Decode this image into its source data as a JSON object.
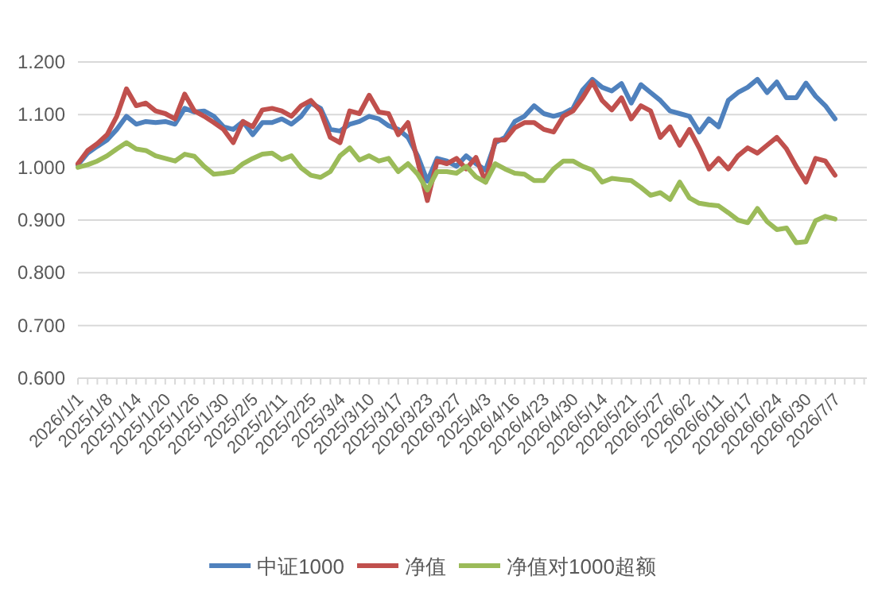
{
  "chart_data": {
    "type": "line",
    "categories": [
      "2026/1/1",
      null,
      null,
      "2025/1/8",
      null,
      null,
      "2025/1/14",
      null,
      null,
      "2025/1/20",
      null,
      null,
      "2025/1/26",
      null,
      null,
      "2025/1/30",
      null,
      null,
      "2025/2/5",
      null,
      null,
      "2025/2/11",
      null,
      null,
      "2025/2/25",
      null,
      null,
      "2025/3/4",
      null,
      null,
      "2025/3/10",
      null,
      null,
      "2025/3/17",
      null,
      null,
      "2026/3/23",
      null,
      null,
      "2026/3/27",
      null,
      null,
      "2025/4/3",
      null,
      null,
      "2026/4/16",
      null,
      null,
      "2026/4/23",
      null,
      null,
      "2026/4/30",
      null,
      null,
      "2026/5/14",
      null,
      null,
      "2026/5/21",
      null,
      null,
      "2026/5/27",
      null,
      null,
      "2026/6/2",
      null,
      null,
      "2026/6/11",
      null,
      null,
      "2026/6/17",
      null,
      null,
      "2026/6/24",
      null,
      null,
      "2026/6/30",
      null,
      null,
      "2026/7/7"
    ],
    "series": [
      {
        "name": "中证1000",
        "color": "#4f81bd",
        "values": [
          1.005,
          1.027,
          1.04,
          1.052,
          1.072,
          1.097,
          1.082,
          1.087,
          1.085,
          1.087,
          1.082,
          1.112,
          1.105,
          1.107,
          1.097,
          1.077,
          1.072,
          1.087,
          1.062,
          1.085,
          1.085,
          1.092,
          1.082,
          1.097,
          1.122,
          1.112,
          1.072,
          1.069,
          1.082,
          1.087,
          1.097,
          1.092,
          1.079,
          1.072,
          1.057,
          1.022,
          0.974,
          1.017,
          1.012,
          1.002,
          1.022,
          1.007,
          0.995,
          1.047,
          1.057,
          1.087,
          1.097,
          1.117,
          1.102,
          1.097,
          1.102,
          1.112,
          1.147,
          1.167,
          1.152,
          1.145,
          1.159,
          1.122,
          1.157,
          1.142,
          1.127,
          1.107,
          1.102,
          1.097,
          1.067,
          1.092,
          1.077,
          1.127,
          1.142,
          1.152,
          1.167,
          1.142,
          1.162,
          1.132,
          1.132,
          1.16,
          1.135,
          1.117,
          1.092
        ]
      },
      {
        "name": "净值",
        "color": "#c0504d",
        "values": [
          1.007,
          1.032,
          1.045,
          1.062,
          1.097,
          1.149,
          1.117,
          1.122,
          1.107,
          1.102,
          1.092,
          1.139,
          1.107,
          1.097,
          1.085,
          1.072,
          1.047,
          1.087,
          1.077,
          1.109,
          1.112,
          1.107,
          1.097,
          1.117,
          1.127,
          1.107,
          1.057,
          1.047,
          1.107,
          1.102,
          1.137,
          1.105,
          1.102,
          1.062,
          1.085,
          1.012,
          0.937,
          1.012,
          1.007,
          1.017,
          0.997,
          1.019,
          0.972,
          1.052,
          1.052,
          1.075,
          1.085,
          1.085,
          1.072,
          1.067,
          1.097,
          1.107,
          1.132,
          1.162,
          1.127,
          1.109,
          1.132,
          1.092,
          1.117,
          1.107,
          1.057,
          1.077,
          1.042,
          1.072,
          1.037,
          0.997,
          1.017,
          0.997,
          1.022,
          1.037,
          1.027,
          1.042,
          1.057,
          1.035,
          1.002,
          0.972,
          1.017,
          1.012,
          0.985
        ]
      },
      {
        "name": "净值对1000超额",
        "color": "#9bbb59",
        "values": [
          1.0,
          1.005,
          1.012,
          1.022,
          1.035,
          1.047,
          1.035,
          1.032,
          1.022,
          1.017,
          1.012,
          1.025,
          1.021,
          1.002,
          0.987,
          0.989,
          0.992,
          1.007,
          1.017,
          1.025,
          1.027,
          1.015,
          1.022,
          0.999,
          0.985,
          0.981,
          0.992,
          1.022,
          1.037,
          1.014,
          1.022,
          1.012,
          1.017,
          0.992,
          1.007,
          0.987,
          0.957,
          0.992,
          0.992,
          0.989,
          1.002,
          0.982,
          0.972,
          1.007,
          0.997,
          0.989,
          0.987,
          0.975,
          0.975,
          0.997,
          1.012,
          1.012,
          1.002,
          0.995,
          0.972,
          0.979,
          0.977,
          0.975,
          0.962,
          0.947,
          0.952,
          0.939,
          0.972,
          0.942,
          0.932,
          0.929,
          0.927,
          0.914,
          0.9,
          0.895,
          0.922,
          0.897,
          0.882,
          0.885,
          0.857,
          0.859,
          0.899,
          0.907,
          0.902
        ]
      }
    ],
    "ylim": [
      0.6,
      1.2
    ],
    "yticks": [
      {
        "value": 0.6,
        "label": "0.600"
      },
      {
        "value": 0.7,
        "label": "0.700"
      },
      {
        "value": 0.8,
        "label": "0.800"
      },
      {
        "value": 0.9,
        "label": "0.900"
      },
      {
        "value": 1.0,
        "label": "1.000"
      },
      {
        "value": 1.1,
        "label": "1.100"
      },
      {
        "value": 1.2,
        "label": "1.200"
      }
    ],
    "grid": "y",
    "legend": "bottom"
  }
}
